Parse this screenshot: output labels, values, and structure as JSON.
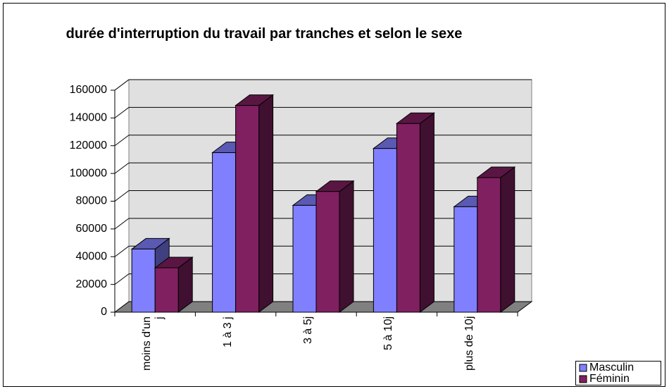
{
  "chart_data": {
    "type": "bar3d",
    "title": "durée d'interruption du travail par tranches et selon le sexe",
    "categories": [
      "moins d'un j",
      "1 à 3 j",
      "3 à 5j",
      "5 à 10j",
      "plus de 10j"
    ],
    "series": [
      {
        "name": "Masculin",
        "color": "#8080ff",
        "values": [
          45500,
          115000,
          77000,
          118000,
          76000
        ]
      },
      {
        "name": "Féminin",
        "color": "#802060",
        "values": [
          32000,
          149000,
          87000,
          136000,
          97000
        ]
      }
    ],
    "ylim": [
      0,
      160000
    ],
    "yticks": [
      0,
      20000,
      40000,
      60000,
      80000,
      100000,
      120000,
      140000,
      160000
    ],
    "grid": true,
    "legend": "bottom-right"
  }
}
